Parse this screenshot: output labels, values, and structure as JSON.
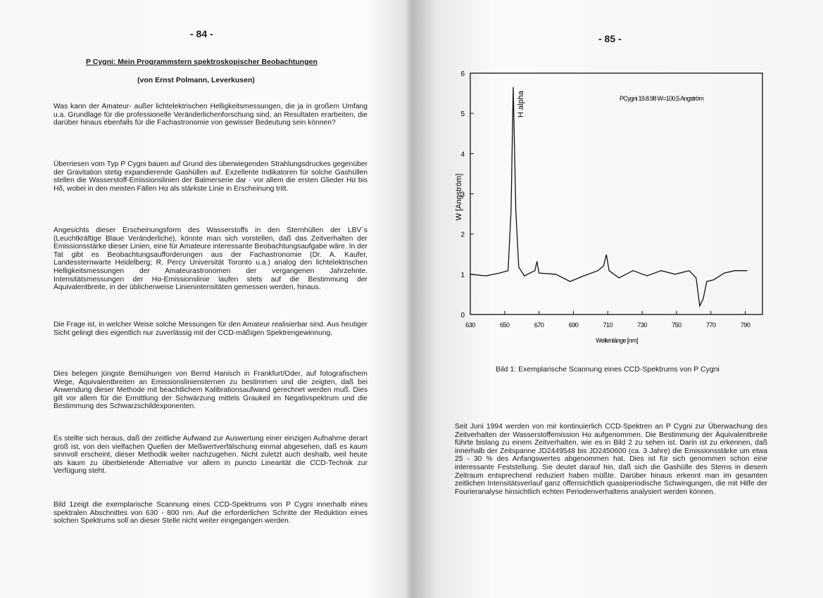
{
  "left_page": {
    "page_number": "- 84 -",
    "title": "P Cygni: Mein Programmstern spektroskopischer Beobachtungen",
    "author": "(von Ernst Polmann, Leverkusen)",
    "paragraphs": [
      "Was kann der Amateur- außer lichtelektrischen Helligkeitsmessungen, die ja in großem Umfang u.a. Grundlage für die professionelle Veränderlichenforschung sind, an Resultaten erarbeiten, die darüber hinaus ebenfalls für die Fachastronomie von gewisser Bedeutung sein können?",
      "Überriesen vom Typ P Cygni bauen auf Grund des überwiegenden Strahlungsdruckes gegenüber der Gravitation stetig expandierende Gashüllen auf. Exzellente Indikatoren für solche Gashüllen stellen die Wasserstoff-Emissionslinien der Balmerserie dar - vor allem die ersten Glieder Hα bis Hδ, wobei in den meisten Fällen Hα als stärkste Linie in Erscheinung tritt.",
      "Angesichts dieser Erscheinungsform des Wasserstoffs in den Sternhüllen der LBV´s (Leuchtkräftige Blaue Veränderliche), könnte man sich vorstellen, daß das Zeitverhalten der Emissionsstärke dieser Linien, eine für Amateure interessante Beobachtungsaufgabe wäre. In der Tat gibt es Beobachtungsaufforderungen aus der Fachastronomie (Dr. A. Kaufer, Landessternwarte Heidelberg; R. Percy Universität Toronto u.a.) analog den lichtelektrischen Helligkeitsmessungen der Amateurastronomen der vergangenen Jahrzehnte. Intensitätsmessungen der Hα-Emissionslinie laufen stets auf die Bestimmung der Äquivalentbreite, in der üblicherweise Linienintensitäten gemessen werden, hinaus.",
      "Die Frage ist, in welcher Weise solche Messungen für den Amateur realisierbar sind. Aus heutiger Sicht gelingt dies eigentlich nur zuverlässig mit der CCD-mäßigen Spektrengewinnung.",
      "Dies belegen jüngste Bemühungen von Bernd Hanisch in Frankfurt/Oder, auf fotografischem Wege, Äquivalentbreiten an Emissionslinien­sternen zu bestimmen und die zeigten, daß bei Anwendung dieser Methode mit beachtlichem Kalibrationsaufwand gerechnet werden muß. Dies gilt vor allem für die Ermittlung der Schwärzung mittels Graukeil im Negativspektrum und die Bestimmung des Schwarzschildexponenten.",
      "Es stellte sich heraus, daß der zeitliche Aufwand zur Auswertung einer einzigen Aufnahme derart groß ist, von den vielfachen Quellen der Meßwertverfälschung einmal abgesehen, daß es kaum sinnvoll erscheint, dieser Methodik weiter nachzugehen. Nicht zuletzt auch deshalb, weil heute als kaum zu überbietende Alternative vor allem in puncto Linearität die CCD-Technik zur Verfügung steht.",
      "Bild 1zeigt die exemplarische Scannung eines CCD-Spektrums von P Cygni innerhalb eines spektralen Abschnittes von 630 - 800 nm. Auf die erforderlichen Schritte der Reduktion eines solchen Spektrums soll an dieser Stelle nicht weiter eingegangen werden."
    ]
  },
  "right_page": {
    "page_number": "- 85 -",
    "caption": "Bild 1: Exemplarische Scannung eines CCD-Spektrums von P Cygni",
    "paragraph": "Seit Juni 1994 werden von mir kontinuierlich CCD-Spektren an P Cygni zur Überwachung des Zeitverhalten der Wasserstoffemission Hα aufgenommen. Die Bestimmung der Äquivalentbreite führte bislang zu einem Zeitverhalten, wie es in Bild 2 zu sehen ist. Darin ist zu erkennen, daß innerhalb der Zeitspanne JD2449548 bis JD2450600 (ca. 3 Jahre) die Emissionsstärke um etwa 25 - 30 % des Anfangswertes abgenommen hat. Dies ist für sich genommen schon eine interessante Feststellung. Sie deutet darauf hin, daß sich die Gashülle des Sterns in diesem Zeitraum entsprechend reduziert haben müßte. Darüber hinaus erkennt man im gesamten zeitlichen Intensitätsverlauf ganz offensichtlich quasiperiodische Schwingungen, die mit Hilfe der Fourieranalyse hinsichtlich echten Periodenverhaltens analysiert werden können."
  },
  "chart_data": {
    "type": "line",
    "annotations": [
      "H alpha",
      "PCygni 19.8.98 W=100,5 Angström"
    ],
    "x_label": "Wellenlänge [nm]",
    "y_label": "W [Angström]",
    "color": "#111111",
    "x": [
      630,
      639,
      647,
      652,
      653.7,
      655,
      656.5,
      658.2,
      661.4,
      667.6,
      668.8,
      670,
      679.8,
      688,
      696,
      704.3,
      707.6,
      709.2,
      710.8,
      716.5,
      724.7,
      732.9,
      741,
      749.2,
      757.3,
      761.4,
      763.5,
      765.5,
      767.6,
      771.6,
      777.8,
      783.9,
      791.2
    ],
    "values": [
      1.0,
      0.96,
      1.03,
      1.09,
      2.58,
      5.65,
      2.58,
      1.18,
      0.96,
      1.09,
      1.32,
      1.03,
      1.0,
      0.82,
      0.96,
      1.09,
      1.21,
      1.49,
      1.09,
      0.91,
      1.09,
      0.96,
      1.09,
      1.0,
      1.09,
      0.91,
      0.21,
      0.39,
      0.82,
      0.86,
      1.03,
      1.09,
      1.09
    ],
    "xlim": [
      630,
      800
    ],
    "ylim": [
      0,
      6
    ],
    "xticks": [
      630,
      650,
      670,
      690,
      710,
      730,
      750,
      770,
      790
    ],
    "yticks": [
      0,
      1,
      2,
      3,
      4,
      5,
      6
    ]
  }
}
